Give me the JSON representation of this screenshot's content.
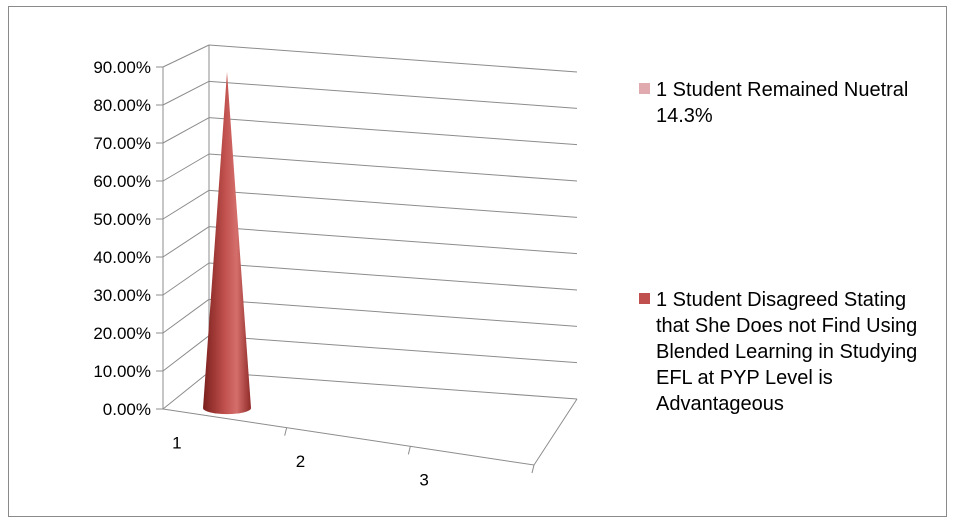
{
  "chart_data": {
    "type": "bar",
    "style": "3d-cone",
    "categories": [
      "1",
      "2",
      "3"
    ],
    "series": [
      {
        "name": "1 Student Remained Nuetral 14.3%",
        "color": "#e0aaae",
        "values": [
          null,
          null,
          null
        ]
      },
      {
        "name": "1 Student Disagreed Stating that She Does not Find Using Blended Learning in Studying EFL at PYP Level is Advantageous",
        "color": "#c0504d",
        "values": [
          0.857,
          null,
          null
        ]
      }
    ],
    "y_ticks": [
      "0.00%",
      "10.00%",
      "20.00%",
      "30.00%",
      "40.00%",
      "50.00%",
      "60.00%",
      "70.00%",
      "80.00%",
      "90.00%"
    ],
    "ylim": [
      0,
      0.9
    ],
    "grid": true,
    "legend_position": "right"
  }
}
